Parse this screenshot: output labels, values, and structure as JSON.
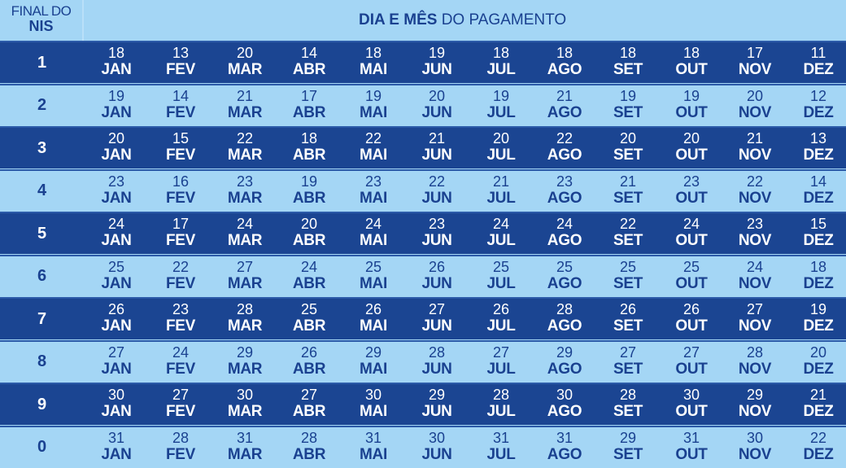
{
  "header": {
    "nis_label_line1": "FINAL DO",
    "nis_label_line2": "NIS",
    "title_bold": "DIA E MÊS",
    "title_rest": " DO PAGAMENTO"
  },
  "colors": {
    "dark_row": "#1b4592",
    "light_row": "#a4d6f5",
    "dark_text": "#1a4190",
    "light_text": "#ffffff"
  },
  "months": [
    "JAN",
    "FEV",
    "MAR",
    "ABR",
    "MAI",
    "JUN",
    "JUL",
    "AGO",
    "SET",
    "OUT",
    "NOV",
    "DEZ"
  ],
  "rows": [
    {
      "nis": "1",
      "days": [
        "18",
        "13",
        "20",
        "14",
        "18",
        "19",
        "18",
        "18",
        "18",
        "18",
        "17",
        "11"
      ]
    },
    {
      "nis": "2",
      "days": [
        "19",
        "14",
        "21",
        "17",
        "19",
        "20",
        "19",
        "21",
        "19",
        "19",
        "20",
        "12"
      ]
    },
    {
      "nis": "3",
      "days": [
        "20",
        "15",
        "22",
        "18",
        "22",
        "21",
        "20",
        "22",
        "20",
        "20",
        "21",
        "13"
      ]
    },
    {
      "nis": "4",
      "days": [
        "23",
        "16",
        "23",
        "19",
        "23",
        "22",
        "21",
        "23",
        "21",
        "23",
        "22",
        "14"
      ]
    },
    {
      "nis": "5",
      "days": [
        "24",
        "17",
        "24",
        "20",
        "24",
        "23",
        "24",
        "24",
        "22",
        "24",
        "23",
        "15"
      ]
    },
    {
      "nis": "6",
      "days": [
        "25",
        "22",
        "27",
        "24",
        "25",
        "26",
        "25",
        "25",
        "25",
        "25",
        "24",
        "18"
      ]
    },
    {
      "nis": "7",
      "days": [
        "26",
        "23",
        "28",
        "25",
        "26",
        "27",
        "26",
        "28",
        "26",
        "26",
        "27",
        "19"
      ]
    },
    {
      "nis": "8",
      "days": [
        "27",
        "24",
        "29",
        "26",
        "29",
        "28",
        "27",
        "29",
        "27",
        "27",
        "28",
        "20"
      ]
    },
    {
      "nis": "9",
      "days": [
        "30",
        "27",
        "30",
        "27",
        "30",
        "29",
        "28",
        "30",
        "28",
        "30",
        "29",
        "21"
      ]
    },
    {
      "nis": "0",
      "days": [
        "31",
        "28",
        "31",
        "28",
        "31",
        "30",
        "31",
        "31",
        "29",
        "31",
        "30",
        "22"
      ]
    }
  ]
}
